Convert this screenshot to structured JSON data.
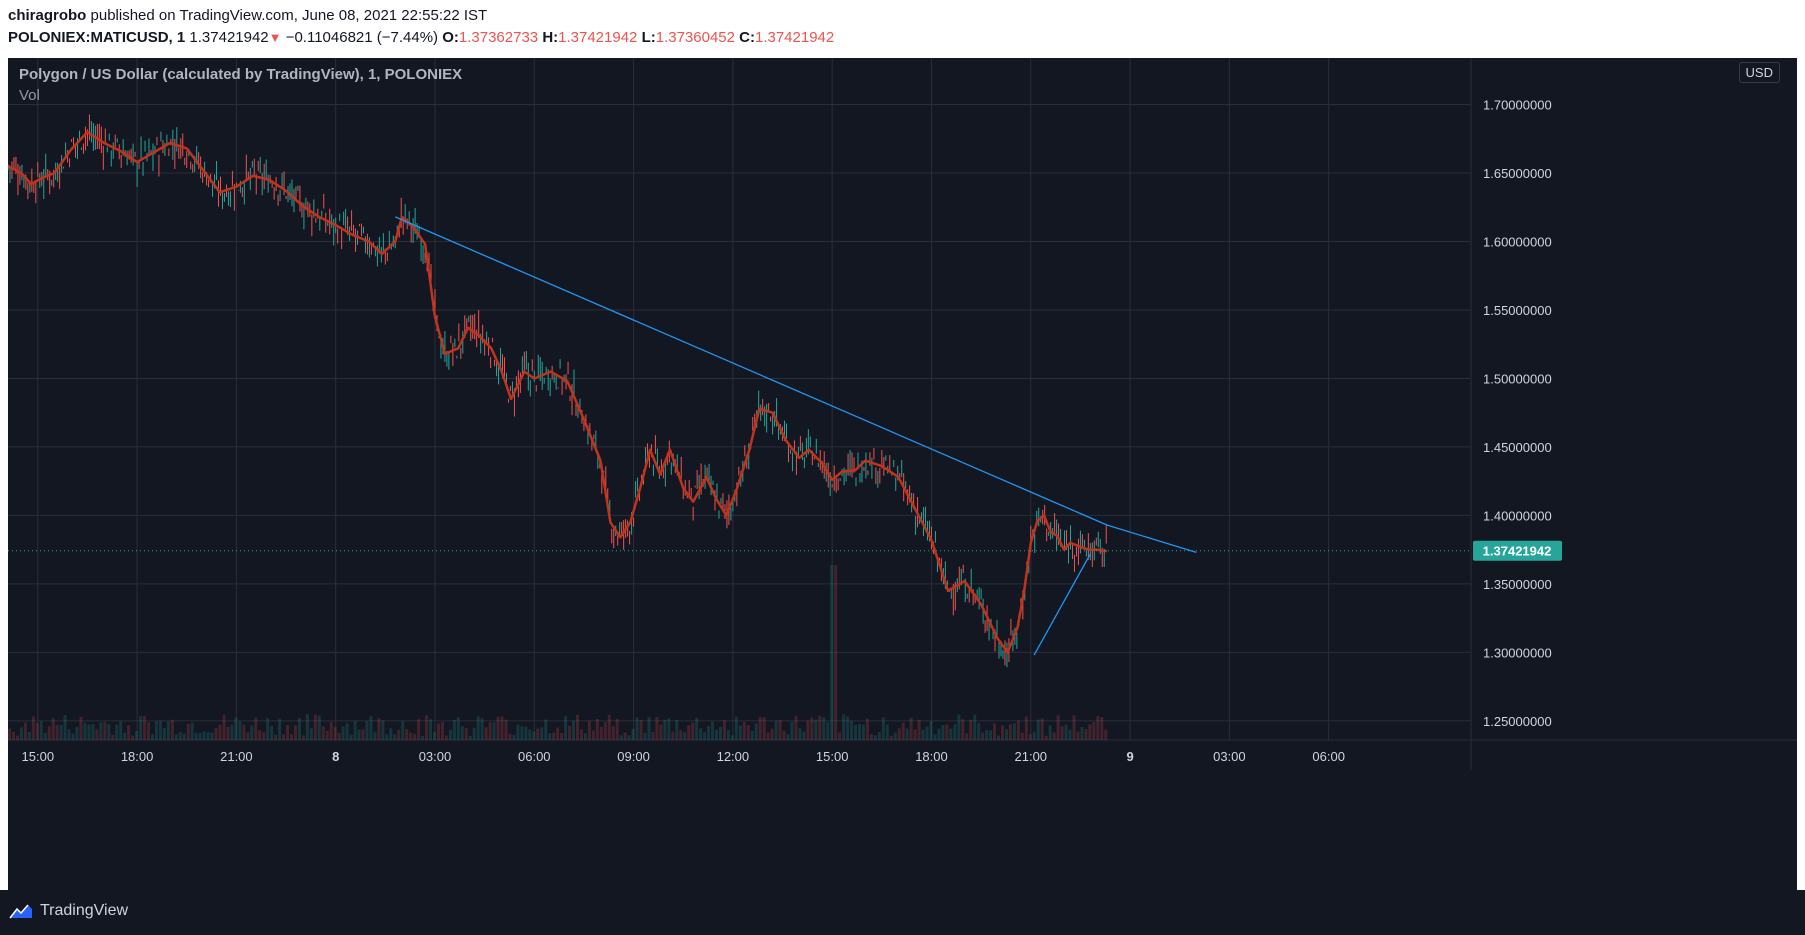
{
  "header": {
    "author": "chiragrobo",
    "published_text": "published on TradingView.com, June 08, 2021 22:55:22 IST",
    "symbol": "POLONIEX:MATICUSD, 1",
    "last": "1.37421942",
    "change": "−0.11046821 (−7.44%)",
    "o_label": "O:",
    "o_value": "1.37362733",
    "h_label": "H:",
    "h_value": "1.37421942",
    "l_label": "L:",
    "l_value": "1.37360452",
    "c_label": "C:",
    "c_value": "1.37421942"
  },
  "legend": {
    "title": "Polygon / US Dollar (calculated by TradingView), 1, POLONIEX",
    "vol": "Vol"
  },
  "currency_badge": "USD",
  "footer": {
    "brand": "TradingView"
  },
  "colors": {
    "background": "#131722",
    "grid": "#2a2e39",
    "up": "#26a69a",
    "down": "#ef5350",
    "ma": "#c0341d",
    "trendline": "#2196f3",
    "axis_text": "#d1d4dc"
  },
  "chart_data": {
    "type": "line",
    "symbol": "POLONIEX:MATICUSD",
    "interval": "1",
    "y_ticks": [
      "1.70000000",
      "1.65000000",
      "1.60000000",
      "1.55000000",
      "1.50000000",
      "1.45000000",
      "1.40000000",
      "1.35000000",
      "1.30000000",
      "1.25000000"
    ],
    "ylim": [
      1.236,
      1.734
    ],
    "x_ticks": [
      "15:00",
      "18:00",
      "21:00",
      "8",
      "03:00",
      "06:00",
      "09:00",
      "12:00",
      "15:00",
      "18:00",
      "21:00",
      "9",
      "03:00",
      "06:00"
    ],
    "x_tick_hours": [
      15,
      18,
      21,
      24,
      27,
      30,
      33,
      36,
      39,
      42,
      45,
      48,
      51,
      54
    ],
    "xlim_hours": [
      14.1,
      58.3
    ],
    "last_price": 1.37421942,
    "last_price_label": "1.37421942",
    "price_series": {
      "x": [
        14.1,
        14.5,
        14.8,
        15.1,
        15.5,
        16.0,
        16.5,
        17.0,
        17.5,
        18.0,
        18.5,
        19.0,
        19.5,
        20.0,
        20.5,
        21.0,
        21.5,
        22.0,
        22.5,
        23.0,
        23.5,
        24.0,
        24.5,
        25.0,
        25.4,
        25.8,
        26.0,
        26.3,
        26.7,
        27.0,
        27.3,
        27.7,
        28.0,
        28.3,
        28.7,
        29.0,
        29.3,
        29.7,
        30.0,
        30.5,
        31.0,
        31.5,
        32.0,
        32.3,
        32.6,
        32.9,
        33.2,
        33.5,
        33.8,
        34.1,
        34.5,
        34.8,
        35.2,
        35.5,
        35.8,
        36.1,
        36.5,
        36.8,
        37.2,
        37.6,
        38.0,
        38.3,
        38.7,
        39.0,
        39.3,
        39.7,
        40.0,
        40.5,
        41.0,
        41.5,
        42.0,
        42.5,
        43.0,
        43.5,
        44.0,
        44.3,
        44.6,
        44.8,
        45.0,
        45.2,
        45.4,
        45.6,
        45.8,
        46.0,
        46.2,
        46.4,
        46.6,
        46.8,
        47.0,
        47.2,
        47.3
      ],
      "y": [
        1.655,
        1.65,
        1.642,
        1.646,
        1.65,
        1.667,
        1.68,
        1.672,
        1.666,
        1.658,
        1.665,
        1.672,
        1.668,
        1.652,
        1.636,
        1.64,
        1.648,
        1.645,
        1.637,
        1.626,
        1.618,
        1.612,
        1.605,
        1.6,
        1.591,
        1.6,
        1.618,
        1.612,
        1.598,
        1.545,
        1.518,
        1.522,
        1.537,
        1.532,
        1.522,
        1.506,
        1.485,
        1.505,
        1.5,
        1.505,
        1.498,
        1.47,
        1.44,
        1.395,
        1.384,
        1.395,
        1.42,
        1.448,
        1.43,
        1.448,
        1.42,
        1.41,
        1.428,
        1.412,
        1.4,
        1.418,
        1.448,
        1.478,
        1.475,
        1.455,
        1.442,
        1.448,
        1.438,
        1.426,
        1.432,
        1.433,
        1.44,
        1.436,
        1.428,
        1.405,
        1.382,
        1.345,
        1.352,
        1.335,
        1.31,
        1.3,
        1.318,
        1.345,
        1.38,
        1.396,
        1.4,
        1.388,
        1.385,
        1.375,
        1.38,
        1.378,
        1.376,
        1.375,
        1.375,
        1.374,
        1.374
      ]
    },
    "trendlines": [
      {
        "x": [
          25.8,
          47.3,
          50.0
        ],
        "y": [
          1.618,
          1.393,
          1.373
        ]
      },
      {
        "x": [
          45.1,
          46.8
        ],
        "y": [
          1.298,
          1.372
        ]
      }
    ]
  }
}
